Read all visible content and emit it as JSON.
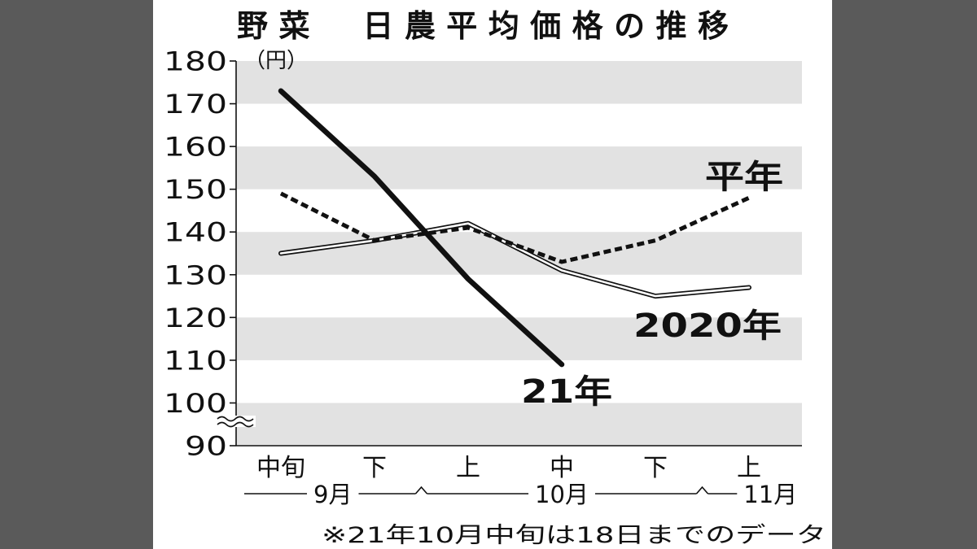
{
  "chart_data": {
    "type": "line",
    "title": "野菜　日農平均価格の推移",
    "unit_label": "（円）",
    "categories": [
      "中旬",
      "下",
      "上",
      "中",
      "下",
      "上"
    ],
    "months": [
      {
        "label": "9月",
        "span": [
          0,
          1
        ]
      },
      {
        "label": "10月",
        "span": [
          2,
          4
        ]
      },
      {
        "label": "11月",
        "span": [
          5,
          5
        ]
      }
    ],
    "ylim": [
      90,
      180
    ],
    "yticks": [
      180,
      170,
      160,
      150,
      140,
      130,
      120,
      110,
      100,
      90
    ],
    "y_break_between": [
      90,
      100
    ],
    "grid": true,
    "band_color": "#e2e2e2",
    "series": [
      {
        "name": "21年",
        "values": [
          173,
          153,
          129,
          109,
          null,
          null
        ],
        "color": "#111111"
      },
      {
        "name": "平年",
        "values": [
          149,
          138,
          141,
          133,
          138,
          148
        ],
        "color": "#111111"
      },
      {
        "name": "2020年",
        "values": [
          135,
          138,
          142,
          131,
          125,
          127
        ],
        "color": "#111111"
      }
    ],
    "note": "※21年10月中旬は18日までのデータ"
  }
}
